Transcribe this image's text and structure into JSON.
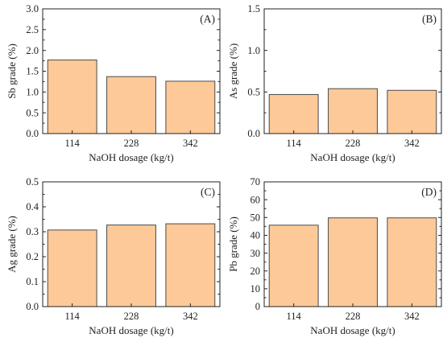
{
  "colors": {
    "bar_fill": "#FDC998",
    "bar_stroke": "#4a4a4a",
    "axis": "#222222"
  },
  "chart_data": [
    {
      "type": "bar",
      "panel_label": "(A)",
      "categories": [
        "114",
        "228",
        "342"
      ],
      "values": [
        1.77,
        1.37,
        1.26
      ],
      "xlabel": "NaOH dosage (kg/t)",
      "ylabel": "Sb grade (%)",
      "ylim": [
        0,
        3.0
      ],
      "yticks": [
        "0.0",
        "0.5",
        "1.0",
        "1.5",
        "2.0",
        "2.5",
        "3.0"
      ],
      "grid": false
    },
    {
      "type": "bar",
      "panel_label": "(B)",
      "categories": [
        "114",
        "228",
        "342"
      ],
      "values": [
        0.47,
        0.54,
        0.52
      ],
      "xlabel": "NaOH dosage (kg/t)",
      "ylabel": "As grade (%)",
      "ylim": [
        0,
        1.5
      ],
      "yticks": [
        "0.0",
        "0.5",
        "1.0",
        "1.5"
      ],
      "grid": false
    },
    {
      "type": "bar",
      "panel_label": "(C)",
      "categories": [
        "114",
        "228",
        "342"
      ],
      "values": [
        0.307,
        0.327,
        0.332
      ],
      "xlabel": "NaOH dosage (kg/t)",
      "ylabel": "Ag grade (%)",
      "ylim": [
        0,
        0.5
      ],
      "yticks": [
        "0.0",
        "0.1",
        "0.2",
        "0.3",
        "0.4",
        "0.5"
      ],
      "grid": false
    },
    {
      "type": "bar",
      "panel_label": "(D)",
      "categories": [
        "114",
        "228",
        "342"
      ],
      "values": [
        45.7,
        49.8,
        49.8
      ],
      "xlabel": "NaOH dosage (kg/t)",
      "ylabel": "Pb grade (%)",
      "ylim": [
        0,
        70
      ],
      "yticks": [
        "0",
        "10",
        "20",
        "30",
        "40",
        "50",
        "60",
        "70"
      ],
      "grid": false
    }
  ]
}
